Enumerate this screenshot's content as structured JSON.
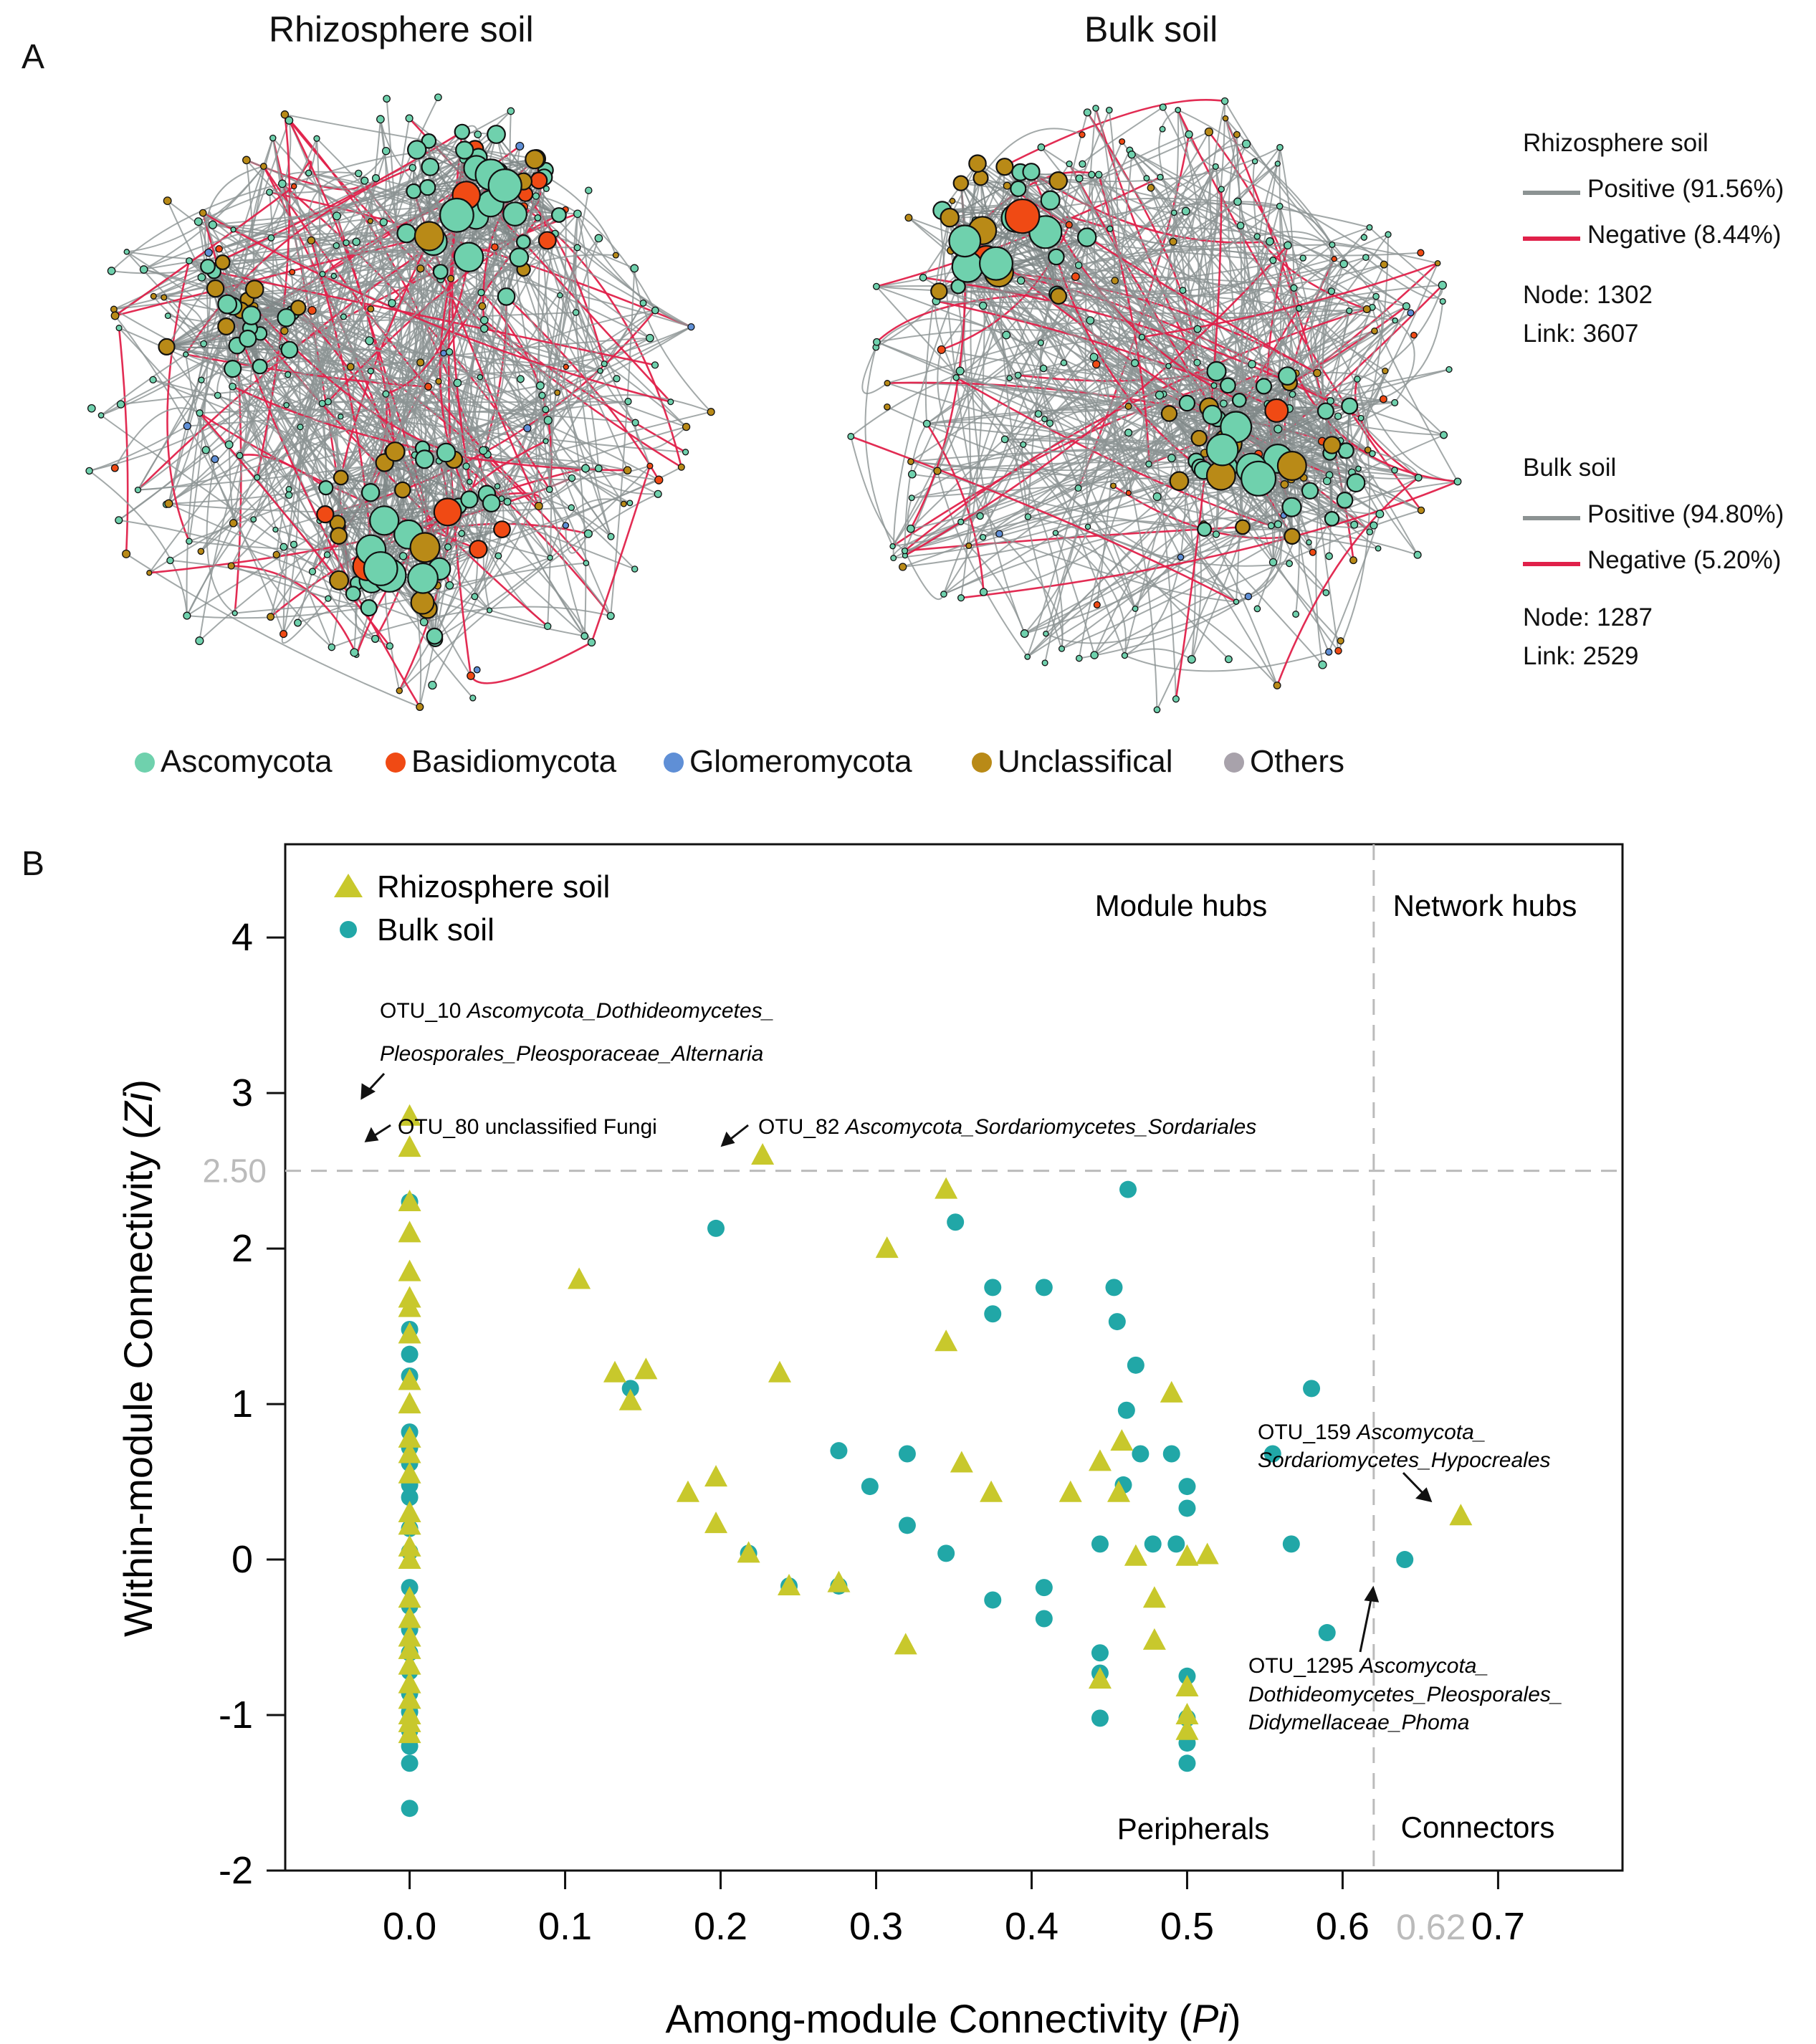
{
  "figure": {
    "panel_a_letter": "A",
    "panel_b_letter": "B"
  },
  "networks": [
    {
      "title": "Rhizosphere soil",
      "seed": 7,
      "nodes": 1302,
      "links": 3607
    },
    {
      "title": "Bulk soil",
      "seed": 23,
      "nodes": 1287,
      "links": 2529
    }
  ],
  "net_legend": [
    {
      "title": "Rhizosphere soil",
      "positive": "Positive (91.56%)",
      "negative": "Negative (8.44%)",
      "node": "Node: 1302",
      "link": "Link: 3607"
    },
    {
      "title": "Bulk soil",
      "positive": "Positive (94.80%)",
      "negative": "Negative (5.20%)",
      "node": "Node: 1287",
      "link": "Link: 2529"
    }
  ],
  "colors": {
    "positive": "#8c9393",
    "negative": "#e0214a",
    "ascomycota": "#6fd1ad",
    "basidiomycota": "#f04a14",
    "glomeromycota": "#5f8fd6",
    "unclassifical": "#b98a17",
    "others": "#a8a2ab",
    "pink": "#ee5e86",
    "rhizo_marker": "#c8c82c",
    "bulk_marker": "#21a7a7"
  },
  "phylum_legend": [
    {
      "label": "Ascomycota",
      "color": "#6fd1ad"
    },
    {
      "label": "Basidiomycota",
      "color": "#f04a14"
    },
    {
      "label": "Glomeromycota",
      "color": "#5f8fd6"
    },
    {
      "label": "Unclassifical",
      "color": "#b98a17"
    },
    {
      "label": "Others",
      "color": "#a8a2ab"
    }
  ],
  "chart_data": {
    "type": "scatter",
    "title": "",
    "xlabel_main": "Among-module Connectivity (",
    "xlabel_italic": "Pi",
    "xlabel_end": ")",
    "ylabel_main": "Within-module Connectivity (",
    "ylabel_italic": "Zi",
    "ylabel_end": ")",
    "xlim": [
      -0.08,
      0.78
    ],
    "ylim": [
      -2,
      4.6
    ],
    "xticks": [
      "0.0",
      "0.1",
      "0.2",
      "0.3",
      "0.4",
      "0.5",
      "0.6",
      "0.7"
    ],
    "xtick_values": [
      0,
      0.1,
      0.2,
      0.3,
      0.4,
      0.5,
      0.6,
      0.7
    ],
    "yticks": [
      "4",
      "3",
      "2",
      "1",
      "0",
      "-1",
      "-2"
    ],
    "ytick_values": [
      4,
      3,
      2,
      1,
      0,
      -1,
      -2
    ],
    "threshold_x": 0.62,
    "threshold_x_label": "0.62",
    "threshold_y": 2.5,
    "threshold_y_label": "2.50",
    "legend": [
      {
        "name": "Rhizosphere soil",
        "marker": "triangle"
      },
      {
        "name": "Bulk soil",
        "marker": "circle"
      }
    ],
    "quadrants": {
      "module_hubs": "Module hubs",
      "network_hubs": "Network hubs",
      "peripherals": "Peripherals",
      "connectors": "Connectors"
    },
    "series": [
      {
        "name": "Rhizosphere soil",
        "marker": "triangle",
        "points": [
          [
            0,
            2.85
          ],
          [
            0,
            2.65
          ],
          [
            0,
            2.3
          ],
          [
            0,
            2.1
          ],
          [
            0,
            1.85
          ],
          [
            0,
            1.68
          ],
          [
            0,
            1.62
          ],
          [
            0,
            1.45
          ],
          [
            0,
            1.15
          ],
          [
            0,
            1.0
          ],
          [
            0,
            0.78
          ],
          [
            0,
            0.68
          ],
          [
            0,
            0.55
          ],
          [
            0,
            0.3
          ],
          [
            0,
            0.22
          ],
          [
            0,
            0.08
          ],
          [
            0,
            0.0
          ],
          [
            0,
            -0.25
          ],
          [
            0,
            -0.38
          ],
          [
            0,
            -0.5
          ],
          [
            0,
            -0.58
          ],
          [
            0,
            -0.68
          ],
          [
            0,
            -0.8
          ],
          [
            0,
            -0.9
          ],
          [
            0,
            -1.0
          ],
          [
            0,
            -1.05
          ],
          [
            0,
            -1.12
          ],
          [
            0.109,
            1.8
          ],
          [
            0.132,
            1.2
          ],
          [
            0.142,
            1.02
          ],
          [
            0.152,
            1.22
          ],
          [
            0.179,
            0.43
          ],
          [
            0.197,
            0.53
          ],
          [
            0.197,
            0.23
          ],
          [
            0.218,
            0.04
          ],
          [
            0.227,
            2.6
          ],
          [
            0.238,
            1.2
          ],
          [
            0.244,
            -0.17
          ],
          [
            0.276,
            -0.15
          ],
          [
            0.307,
            2.0
          ],
          [
            0.319,
            -0.55
          ],
          [
            0.345,
            2.38
          ],
          [
            0.345,
            1.4
          ],
          [
            0.355,
            0.62
          ],
          [
            0.374,
            0.43
          ],
          [
            0.425,
            0.43
          ],
          [
            0.444,
            0.63
          ],
          [
            0.444,
            -0.77
          ],
          [
            0.456,
            0.43
          ],
          [
            0.458,
            0.76
          ],
          [
            0.467,
            0.02
          ],
          [
            0.479,
            -0.25
          ],
          [
            0.479,
            -0.52
          ],
          [
            0.49,
            1.07
          ],
          [
            0.5,
            0.02
          ],
          [
            0.5,
            -0.82
          ],
          [
            0.5,
            -1.0
          ],
          [
            0.5,
            -1.1
          ],
          [
            0.513,
            0.03
          ],
          [
            0.676,
            0.28
          ]
        ]
      },
      {
        "name": "Bulk soil",
        "marker": "circle",
        "points": [
          [
            0,
            2.3
          ],
          [
            0,
            1.48
          ],
          [
            0,
            1.32
          ],
          [
            0,
            1.18
          ],
          [
            0,
            0.82
          ],
          [
            0,
            0.72
          ],
          [
            0,
            0.62
          ],
          [
            0,
            0.48
          ],
          [
            0,
            0.4
          ],
          [
            0,
            0.2
          ],
          [
            0,
            0.05
          ],
          [
            0,
            -0.18
          ],
          [
            0,
            -0.3
          ],
          [
            0,
            -0.45
          ],
          [
            0,
            -0.6
          ],
          [
            0,
            -0.72
          ],
          [
            0,
            -0.86
          ],
          [
            0,
            -0.98
          ],
          [
            0,
            -1.1
          ],
          [
            0,
            -1.2
          ],
          [
            0,
            -1.31
          ],
          [
            0,
            -1.6
          ],
          [
            0.142,
            1.1
          ],
          [
            0.197,
            2.13
          ],
          [
            0.218,
            0.04
          ],
          [
            0.244,
            -0.17
          ],
          [
            0.276,
            0.7
          ],
          [
            0.276,
            -0.17
          ],
          [
            0.296,
            0.47
          ],
          [
            0.32,
            0.68
          ],
          [
            0.32,
            0.22
          ],
          [
            0.345,
            0.04
          ],
          [
            0.351,
            2.17
          ],
          [
            0.375,
            1.75
          ],
          [
            0.375,
            1.58
          ],
          [
            0.375,
            -0.26
          ],
          [
            0.408,
            1.75
          ],
          [
            0.408,
            -0.18
          ],
          [
            0.408,
            -0.38
          ],
          [
            0.444,
            0.1
          ],
          [
            0.444,
            -0.6
          ],
          [
            0.444,
            -0.73
          ],
          [
            0.444,
            -1.02
          ],
          [
            0.453,
            1.75
          ],
          [
            0.455,
            1.53
          ],
          [
            0.459,
            0.48
          ],
          [
            0.461,
            0.96
          ],
          [
            0.462,
            2.38
          ],
          [
            0.467,
            1.25
          ],
          [
            0.47,
            0.68
          ],
          [
            0.478,
            0.1
          ],
          [
            0.49,
            0.68
          ],
          [
            0.493,
            0.1
          ],
          [
            0.5,
            0.47
          ],
          [
            0.5,
            0.33
          ],
          [
            0.5,
            -0.75
          ],
          [
            0.5,
            -1.02
          ],
          [
            0.5,
            -1.18
          ],
          [
            0.5,
            -1.31
          ],
          [
            0.555,
            0.68
          ],
          [
            0.567,
            0.1
          ],
          [
            0.58,
            1.1
          ],
          [
            0.59,
            -0.47
          ],
          [
            0.64,
            0.0
          ]
        ]
      }
    ],
    "annotations": [
      {
        "id": "otu10",
        "line1_plain": "OTU_10 ",
        "line1_italic": "Ascomycota_Dothideomycetes_",
        "line2_italic": "Pleosporales_Pleosporaceae_Alternaria",
        "point": [
          0,
          2.85
        ]
      },
      {
        "id": "otu80",
        "line1_plain": "OTU_80 unclassified Fungi",
        "point": [
          0,
          2.65
        ]
      },
      {
        "id": "otu82",
        "line1_plain": "OTU_82 ",
        "line1_italic": "Ascomycota_Sordariomycetes_Sordariales",
        "point": [
          0.227,
          2.6
        ]
      },
      {
        "id": "otu159",
        "line1_plain": "OTU_159 ",
        "line1_italic": "Ascomycota_",
        "line2_italic": "Sordariomycetes_Hypocreales",
        "point": [
          0.676,
          0.28
        ]
      },
      {
        "id": "otu1295",
        "line1_plain": "OTU_1295 ",
        "line1_italic": "Ascomycota_",
        "line2_italic": "Dothideomycetes_Pleosporales_",
        "line3_italic": "Didymellaceae_Phoma",
        "point": [
          0.64,
          0.0
        ]
      }
    ]
  }
}
